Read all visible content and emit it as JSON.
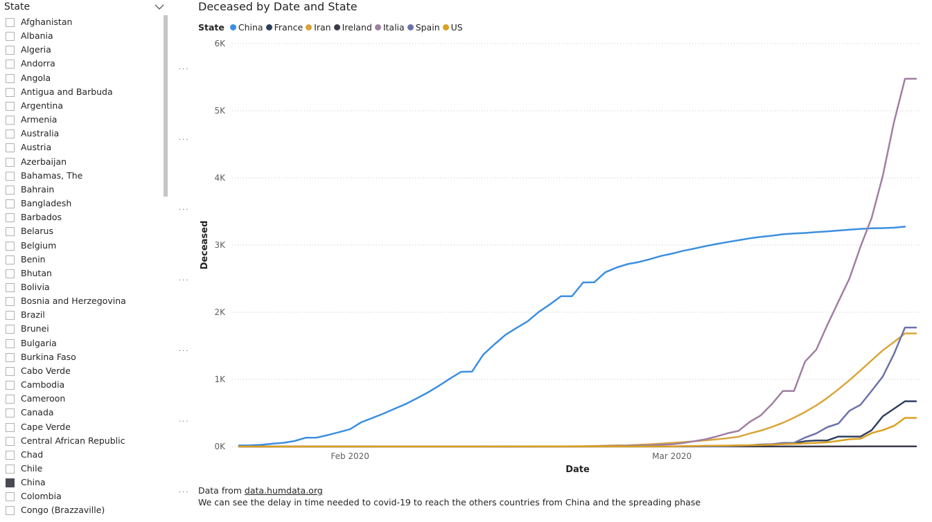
{
  "slicer": {
    "title": "State",
    "items": [
      {
        "label": "Afghanistan",
        "checked": false
      },
      {
        "label": "Albania",
        "checked": false
      },
      {
        "label": "Algeria",
        "checked": false
      },
      {
        "label": "Andorra",
        "checked": false
      },
      {
        "label": "Angola",
        "checked": false
      },
      {
        "label": "Antigua and Barbuda",
        "checked": false
      },
      {
        "label": "Argentina",
        "checked": false
      },
      {
        "label": "Armenia",
        "checked": false
      },
      {
        "label": "Australia",
        "checked": false
      },
      {
        "label": "Austria",
        "checked": false
      },
      {
        "label": "Azerbaijan",
        "checked": false
      },
      {
        "label": "Bahamas, The",
        "checked": false
      },
      {
        "label": "Bahrain",
        "checked": false
      },
      {
        "label": "Bangladesh",
        "checked": false
      },
      {
        "label": "Barbados",
        "checked": false
      },
      {
        "label": "Belarus",
        "checked": false
      },
      {
        "label": "Belgium",
        "checked": false
      },
      {
        "label": "Benin",
        "checked": false
      },
      {
        "label": "Bhutan",
        "checked": false
      },
      {
        "label": "Bolivia",
        "checked": false
      },
      {
        "label": "Bosnia and Herzegovina",
        "checked": false
      },
      {
        "label": "Brazil",
        "checked": false
      },
      {
        "label": "Brunei",
        "checked": false
      },
      {
        "label": "Bulgaria",
        "checked": false
      },
      {
        "label": "Burkina Faso",
        "checked": false
      },
      {
        "label": "Cabo Verde",
        "checked": false
      },
      {
        "label": "Cambodia",
        "checked": false
      },
      {
        "label": "Cameroon",
        "checked": false
      },
      {
        "label": "Canada",
        "checked": false
      },
      {
        "label": "Cape Verde",
        "checked": false
      },
      {
        "label": "Central African Republic",
        "checked": false
      },
      {
        "label": "Chad",
        "checked": false
      },
      {
        "label": "Chile",
        "checked": false
      },
      {
        "label": "China",
        "checked": true
      },
      {
        "label": "Colombia",
        "checked": false
      },
      {
        "label": "Congo (Brazzaville)",
        "checked": false
      }
    ]
  },
  "footnote": {
    "prefix": "Data from ",
    "link": "data.humdata.org",
    "line2": "We can see the delay in time needed to covid-19 to reach the others countries from China and the spreading phase"
  },
  "chart_data": {
    "type": "line",
    "title": "Deceased by Date and State",
    "legend_title": "State",
    "legend_position": "top-left",
    "xlabel": "Date",
    "ylabel": "Deceased",
    "xlim": [
      "2020-01-22",
      "2020-03-21"
    ],
    "ylim": [
      0,
      6000
    ],
    "yticks": [
      "0K",
      "1K",
      "2K",
      "3K",
      "4K",
      "5K",
      "6K"
    ],
    "ytick_values": [
      0,
      1000,
      2000,
      3000,
      4000,
      5000,
      6000
    ],
    "xticks": [
      {
        "label": "Feb 2020",
        "date": "2020-02-01"
      },
      {
        "label": "Mar 2020",
        "date": "2020-03-01"
      }
    ],
    "grid": "horizontal dotted",
    "series": [
      {
        "name": "China",
        "color": "#3b8fe0",
        "points": [
          [
            "2020-01-22",
            17
          ],
          [
            "2020-01-23",
            18
          ],
          [
            "2020-01-24",
            26
          ],
          [
            "2020-01-25",
            42
          ],
          [
            "2020-01-26",
            56
          ],
          [
            "2020-01-27",
            82
          ],
          [
            "2020-01-28",
            131
          ],
          [
            "2020-01-29",
            133
          ],
          [
            "2020-01-30",
            171
          ],
          [
            "2020-01-31",
            213
          ],
          [
            "2020-02-01",
            259
          ],
          [
            "2020-02-02",
            361
          ],
          [
            "2020-02-03",
            425
          ],
          [
            "2020-02-04",
            490
          ],
          [
            "2020-02-05",
            562
          ],
          [
            "2020-02-06",
            632
          ],
          [
            "2020-02-07",
            717
          ],
          [
            "2020-02-08",
            804
          ],
          [
            "2020-02-09",
            904
          ],
          [
            "2020-02-10",
            1011
          ],
          [
            "2020-02-11",
            1112
          ],
          [
            "2020-02-12",
            1117
          ],
          [
            "2020-02-13",
            1369
          ],
          [
            "2020-02-14",
            1521
          ],
          [
            "2020-02-15",
            1663
          ],
          [
            "2020-02-16",
            1766
          ],
          [
            "2020-02-17",
            1864
          ],
          [
            "2020-02-18",
            2003
          ],
          [
            "2020-02-19",
            2116
          ],
          [
            "2020-02-20",
            2238
          ],
          [
            "2020-02-21",
            2238
          ],
          [
            "2020-02-22",
            2443
          ],
          [
            "2020-02-23",
            2445
          ],
          [
            "2020-02-24",
            2595
          ],
          [
            "2020-02-25",
            2665
          ],
          [
            "2020-02-26",
            2717
          ],
          [
            "2020-02-27",
            2746
          ],
          [
            "2020-02-28",
            2790
          ],
          [
            "2020-02-29",
            2837
          ],
          [
            "2020-03-01",
            2872
          ],
          [
            "2020-03-02",
            2914
          ],
          [
            "2020-03-03",
            2947
          ],
          [
            "2020-03-04",
            2983
          ],
          [
            "2020-03-05",
            3015
          ],
          [
            "2020-03-06",
            3044
          ],
          [
            "2020-03-07",
            3072
          ],
          [
            "2020-03-08",
            3100
          ],
          [
            "2020-03-09",
            3123
          ],
          [
            "2020-03-10",
            3139
          ],
          [
            "2020-03-11",
            3161
          ],
          [
            "2020-03-12",
            3172
          ],
          [
            "2020-03-13",
            3180
          ],
          [
            "2020-03-14",
            3193
          ],
          [
            "2020-03-15",
            3203
          ],
          [
            "2020-03-16",
            3217
          ],
          [
            "2020-03-17",
            3230
          ],
          [
            "2020-03-18",
            3241
          ],
          [
            "2020-03-19",
            3249
          ],
          [
            "2020-03-20",
            3253
          ],
          [
            "2020-03-21",
            3259
          ],
          [
            "2020-03-22",
            3274
          ]
        ]
      },
      {
        "name": "France",
        "color": "#2f3f5e",
        "points": [
          [
            "2020-01-22",
            0
          ],
          [
            "2020-02-14",
            1
          ],
          [
            "2020-02-25",
            2
          ],
          [
            "2020-03-01",
            2
          ],
          [
            "2020-03-03",
            4
          ],
          [
            "2020-03-05",
            6
          ],
          [
            "2020-03-07",
            16
          ],
          [
            "2020-03-08",
            19
          ],
          [
            "2020-03-09",
            30
          ],
          [
            "2020-03-10",
            33
          ],
          [
            "2020-03-11",
            48
          ],
          [
            "2020-03-12",
            48
          ],
          [
            "2020-03-13",
            79
          ],
          [
            "2020-03-14",
            91
          ],
          [
            "2020-03-15",
            91
          ],
          [
            "2020-03-16",
            148
          ],
          [
            "2020-03-17",
            148
          ],
          [
            "2020-03-18",
            148
          ],
          [
            "2020-03-19",
            243
          ],
          [
            "2020-03-20",
            450
          ],
          [
            "2020-03-21",
            562
          ],
          [
            "2020-03-22",
            674
          ],
          [
            "2020-03-23",
            674
          ]
        ]
      },
      {
        "name": "Iran",
        "color": "#d9a53a",
        "points": [
          [
            "2020-01-22",
            0
          ],
          [
            "2020-02-19",
            2
          ],
          [
            "2020-02-20",
            2
          ],
          [
            "2020-02-21",
            4
          ],
          [
            "2020-02-22",
            5
          ],
          [
            "2020-02-23",
            8
          ],
          [
            "2020-02-24",
            12
          ],
          [
            "2020-02-25",
            16
          ],
          [
            "2020-02-26",
            19
          ],
          [
            "2020-02-27",
            26
          ],
          [
            "2020-02-28",
            34
          ],
          [
            "2020-02-29",
            43
          ],
          [
            "2020-03-01",
            54
          ],
          [
            "2020-03-02",
            66
          ],
          [
            "2020-03-03",
            77
          ],
          [
            "2020-03-04",
            92
          ],
          [
            "2020-03-05",
            107
          ],
          [
            "2020-03-06",
            124
          ],
          [
            "2020-03-07",
            145
          ],
          [
            "2020-03-08",
            194
          ],
          [
            "2020-03-09",
            237
          ],
          [
            "2020-03-10",
            291
          ],
          [
            "2020-03-11",
            354
          ],
          [
            "2020-03-12",
            429
          ],
          [
            "2020-03-13",
            514
          ],
          [
            "2020-03-14",
            611
          ],
          [
            "2020-03-15",
            724
          ],
          [
            "2020-03-16",
            853
          ],
          [
            "2020-03-17",
            988
          ],
          [
            "2020-03-18",
            1135
          ],
          [
            "2020-03-19",
            1284
          ],
          [
            "2020-03-20",
            1433
          ],
          [
            "2020-03-21",
            1556
          ],
          [
            "2020-03-22",
            1685
          ],
          [
            "2020-03-23",
            1685
          ]
        ]
      },
      {
        "name": "Ireland",
        "color": "#3d3a4a",
        "points": [
          [
            "2020-01-22",
            0
          ],
          [
            "2020-03-11",
            1
          ],
          [
            "2020-03-20",
            3
          ],
          [
            "2020-03-23",
            3
          ]
        ]
      },
      {
        "name": "Italia",
        "color": "#a07fa1",
        "points": [
          [
            "2020-01-22",
            0
          ],
          [
            "2020-02-21",
            1
          ],
          [
            "2020-02-22",
            2
          ],
          [
            "2020-02-23",
            3
          ],
          [
            "2020-02-24",
            7
          ],
          [
            "2020-02-25",
            10
          ],
          [
            "2020-02-26",
            12
          ],
          [
            "2020-02-27",
            17
          ],
          [
            "2020-02-28",
            21
          ],
          [
            "2020-02-29",
            29
          ],
          [
            "2020-03-01",
            34
          ],
          [
            "2020-03-02",
            52
          ],
          [
            "2020-03-03",
            79
          ],
          [
            "2020-03-04",
            107
          ],
          [
            "2020-03-05",
            148
          ],
          [
            "2020-03-06",
            197
          ],
          [
            "2020-03-07",
            233
          ],
          [
            "2020-03-08",
            366
          ],
          [
            "2020-03-09",
            463
          ],
          [
            "2020-03-10",
            631
          ],
          [
            "2020-03-11",
            827
          ],
          [
            "2020-03-12",
            827
          ],
          [
            "2020-03-13",
            1266
          ],
          [
            "2020-03-14",
            1441
          ],
          [
            "2020-03-15",
            1809
          ],
          [
            "2020-03-16",
            2158
          ],
          [
            "2020-03-17",
            2503
          ],
          [
            "2020-03-18",
            2978
          ],
          [
            "2020-03-19",
            3405
          ],
          [
            "2020-03-20",
            4032
          ],
          [
            "2020-03-21",
            4825
          ],
          [
            "2020-03-22",
            5476
          ],
          [
            "2020-03-23",
            5476
          ]
        ]
      },
      {
        "name": "Spain",
        "color": "#6c72a8",
        "points": [
          [
            "2020-01-22",
            0
          ],
          [
            "2020-03-03",
            1
          ],
          [
            "2020-03-05",
            3
          ],
          [
            "2020-03-06",
            5
          ],
          [
            "2020-03-07",
            10
          ],
          [
            "2020-03-08",
            17
          ],
          [
            "2020-03-09",
            28
          ],
          [
            "2020-03-10",
            35
          ],
          [
            "2020-03-11",
            54
          ],
          [
            "2020-03-12",
            55
          ],
          [
            "2020-03-13",
            133
          ],
          [
            "2020-03-14",
            195
          ],
          [
            "2020-03-15",
            289
          ],
          [
            "2020-03-16",
            342
          ],
          [
            "2020-03-17",
            533
          ],
          [
            "2020-03-18",
            623
          ],
          [
            "2020-03-19",
            830
          ],
          [
            "2020-03-20",
            1043
          ],
          [
            "2020-03-21",
            1375
          ],
          [
            "2020-03-22",
            1772
          ],
          [
            "2020-03-23",
            1772
          ]
        ]
      },
      {
        "name": "US",
        "color": "#d9a021",
        "points": [
          [
            "2020-01-22",
            0
          ],
          [
            "2020-02-29",
            1
          ],
          [
            "2020-03-01",
            1
          ],
          [
            "2020-03-02",
            6
          ],
          [
            "2020-03-03",
            7
          ],
          [
            "2020-03-04",
            11
          ],
          [
            "2020-03-05",
            12
          ],
          [
            "2020-03-06",
            14
          ],
          [
            "2020-03-07",
            17
          ],
          [
            "2020-03-08",
            21
          ],
          [
            "2020-03-09",
            22
          ],
          [
            "2020-03-10",
            28
          ],
          [
            "2020-03-11",
            36
          ],
          [
            "2020-03-12",
            40
          ],
          [
            "2020-03-13",
            47
          ],
          [
            "2020-03-14",
            54
          ],
          [
            "2020-03-15",
            63
          ],
          [
            "2020-03-16",
            85
          ],
          [
            "2020-03-17",
            108
          ],
          [
            "2020-03-18",
            118
          ],
          [
            "2020-03-19",
            200
          ],
          [
            "2020-03-20",
            244
          ],
          [
            "2020-03-21",
            307
          ],
          [
            "2020-03-22",
            427
          ],
          [
            "2020-03-23",
            427
          ]
        ]
      }
    ]
  }
}
